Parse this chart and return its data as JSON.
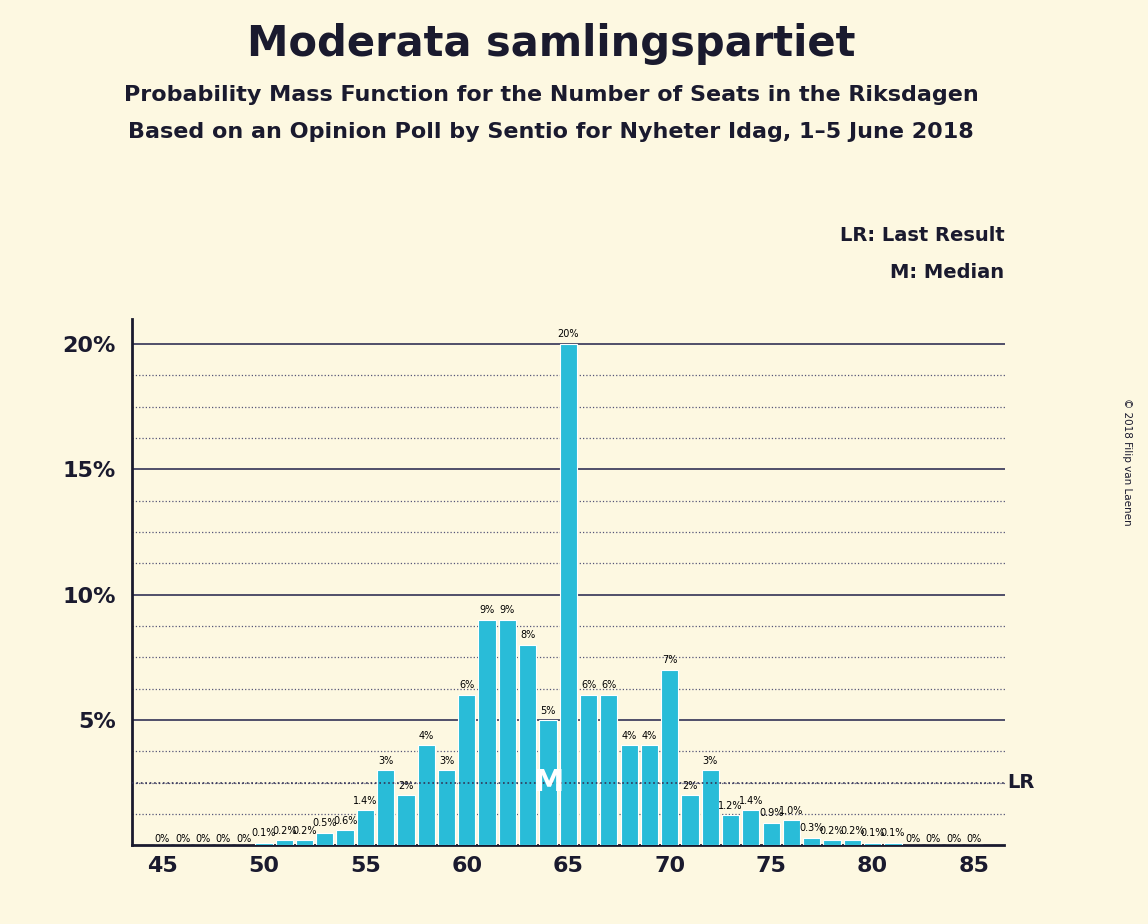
{
  "title": "Moderata samlingspartiet",
  "subtitle1": "Probability Mass Function for the Number of Seats in the Riksdagen",
  "subtitle2": "Based on an Opinion Poll by Sentio for Nyheter Idag, 1–5 June 2018",
  "copyright": "© 2018 Filip van Laenen",
  "legend_lr": "LR: Last Result",
  "legend_m": "M: Median",
  "lr_label": "LR",
  "m_label": "M",
  "background_color": "#fdf8e1",
  "bar_color": "#29bcd8",
  "seats": [
    45,
    46,
    47,
    48,
    49,
    50,
    51,
    52,
    53,
    54,
    55,
    56,
    57,
    58,
    59,
    60,
    61,
    62,
    63,
    64,
    65,
    66,
    67,
    68,
    69,
    70,
    71,
    72,
    73,
    74,
    75,
    76,
    77,
    78,
    79,
    80,
    81,
    82,
    83,
    84,
    85
  ],
  "probabilities": [
    0.0,
    0.0,
    0.0,
    0.0,
    0.0,
    0.1,
    0.2,
    0.2,
    0.5,
    0.6,
    1.4,
    3.0,
    2.0,
    4.0,
    3.0,
    6.0,
    9.0,
    9.0,
    8.0,
    5.0,
    20.0,
    6.0,
    6.0,
    4.0,
    4.0,
    7.0,
    2.0,
    3.0,
    1.2,
    1.4,
    0.9,
    1.0,
    0.3,
    0.2,
    0.2,
    0.1,
    0.1,
    0.0,
    0.0,
    0.0,
    0.0
  ],
  "bar_labels": [
    "0%",
    "0%",
    "0%",
    "0%",
    "0%",
    "0.1%",
    "0.2%",
    "0.2%",
    "0.5%",
    "0.6%",
    "1.4%",
    "3%",
    "2%",
    "4%",
    "3%",
    "6%",
    "9%",
    "9%",
    "8%",
    "5%",
    "20%",
    "6%",
    "6%",
    "4%",
    "4%",
    "7%",
    "2%",
    "3%",
    "1.2%",
    "1.4%",
    "0.9%",
    "1.0%",
    "0.3%",
    "0.2%",
    "0.2%",
    "0.1%",
    "0.1%",
    "0%",
    "0%",
    "0%",
    "0%"
  ],
  "median_seat": 64,
  "lr_seat": 84,
  "lr_line_y": 2.5,
  "ylim_max": 21.0,
  "yticks_solid": [
    5,
    10,
    15,
    20
  ],
  "ytick_labels": [
    "5%",
    "10%",
    "15%",
    "20%"
  ],
  "yticks_dotted": [
    1.25,
    2.5,
    3.75,
    6.25,
    7.5,
    8.75,
    11.25,
    12.5,
    13.75,
    16.25,
    17.5,
    18.75
  ],
  "xticks": [
    45,
    50,
    55,
    60,
    65,
    70,
    75,
    80,
    85
  ],
  "title_fontsize": 30,
  "subtitle_fontsize": 16,
  "axis_fontsize": 16
}
